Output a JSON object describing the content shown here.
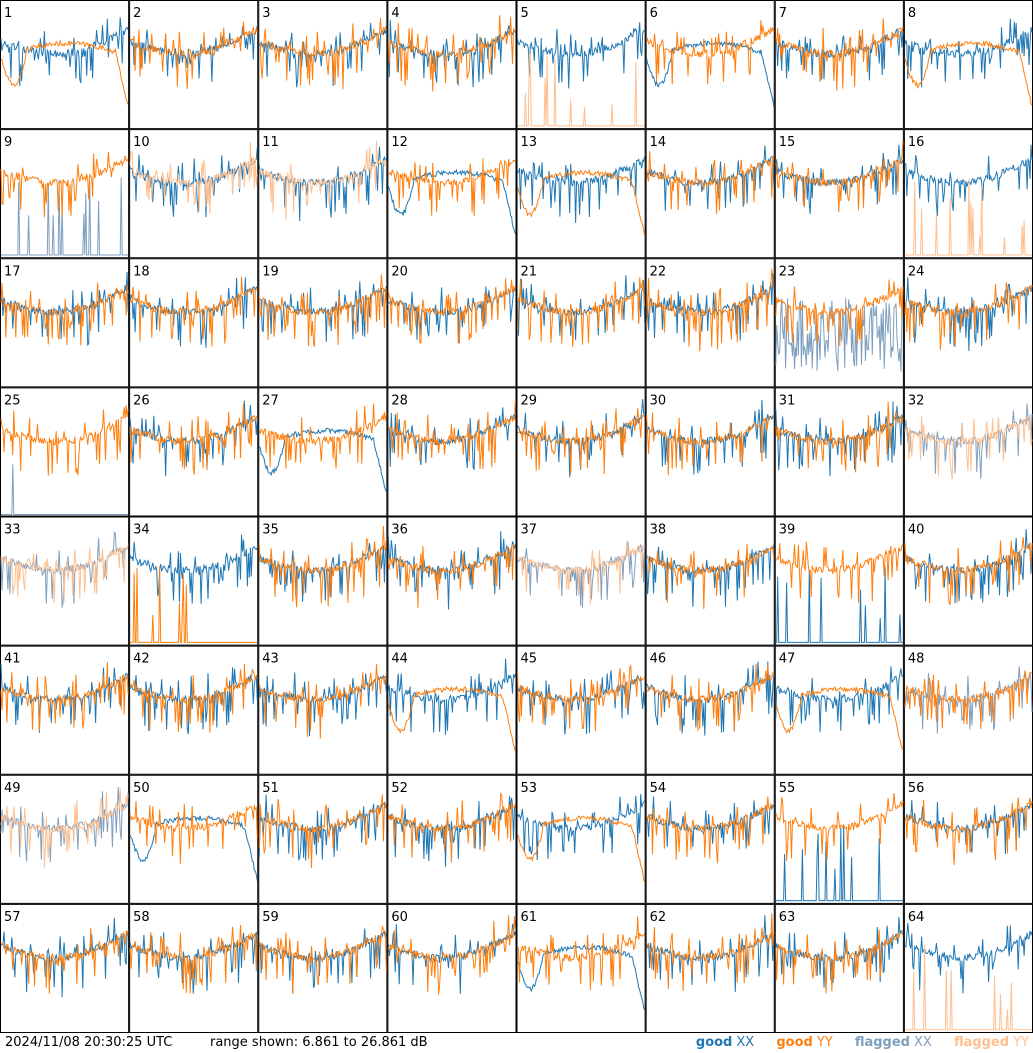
{
  "timestamp": "2024/11/08 20:30:25 UTC",
  "range_text": "range shown: 6.861 to 26.861 dB",
  "legend": {
    "good_xx": {
      "word": "good",
      "key": "XX",
      "color": "#1f77b4"
    },
    "good_yy": {
      "word": "good",
      "key": "YY",
      "color": "#ff7f0e"
    },
    "flagged_xx": {
      "word": "flagged",
      "key": "XX",
      "color": "#7f9fbf"
    },
    "flagged_yy": {
      "word": "flagged",
      "key": "YY",
      "color": "#ffbf8f"
    }
  },
  "chart_data": {
    "type": "line",
    "grid": {
      "rows": 8,
      "cols": 8
    },
    "ylim": [
      6.861,
      26.861
    ],
    "unit": "dB",
    "panels": [
      {
        "id": "1",
        "xx": "good",
        "yy": "good",
        "yy_shape": "smooth"
      },
      {
        "id": "2",
        "xx": "good",
        "yy": "good"
      },
      {
        "id": "3",
        "xx": "good",
        "yy": "good"
      },
      {
        "id": "4",
        "xx": "good",
        "yy": "good"
      },
      {
        "id": "5",
        "xx": "good",
        "yy": "flagged",
        "yy_shape": "spikes"
      },
      {
        "id": "6",
        "xx": "good",
        "yy": "good",
        "xx_shape": "smooth"
      },
      {
        "id": "7",
        "xx": "good",
        "yy": "good"
      },
      {
        "id": "8",
        "xx": "good",
        "yy": "good",
        "yy_shape": "smooth"
      },
      {
        "id": "9",
        "xx": "flagged",
        "yy": "good",
        "xx_shape": "spikes"
      },
      {
        "id": "10",
        "xx": "good",
        "yy": "flagged"
      },
      {
        "id": "11",
        "xx": "good",
        "yy": "flagged"
      },
      {
        "id": "12",
        "xx": "good",
        "yy": "good",
        "xx_shape": "smooth"
      },
      {
        "id": "13",
        "xx": "good",
        "yy": "good",
        "yy_shape": "smooth"
      },
      {
        "id": "14",
        "xx": "good",
        "yy": "good"
      },
      {
        "id": "15",
        "xx": "good",
        "yy": "good"
      },
      {
        "id": "16",
        "xx": "good",
        "yy": "flagged",
        "yy_shape": "spikes"
      },
      {
        "id": "17",
        "xx": "good",
        "yy": "good"
      },
      {
        "id": "18",
        "xx": "good",
        "yy": "good"
      },
      {
        "id": "19",
        "xx": "good",
        "yy": "good"
      },
      {
        "id": "20",
        "xx": "good",
        "yy": "good"
      },
      {
        "id": "21",
        "xx": "good",
        "yy": "good"
      },
      {
        "id": "22",
        "xx": "good",
        "yy": "good"
      },
      {
        "id": "23",
        "xx": "flagged",
        "yy": "good",
        "xx_shape": "noisy"
      },
      {
        "id": "24",
        "xx": "good",
        "yy": "good"
      },
      {
        "id": "25",
        "xx": "flagged",
        "yy": "good",
        "xx_shape": "spike"
      },
      {
        "id": "26",
        "xx": "good",
        "yy": "good"
      },
      {
        "id": "27",
        "xx": "good",
        "yy": "good",
        "xx_shape": "smooth"
      },
      {
        "id": "28",
        "xx": "good",
        "yy": "good"
      },
      {
        "id": "29",
        "xx": "good",
        "yy": "good"
      },
      {
        "id": "30",
        "xx": "good",
        "yy": "good"
      },
      {
        "id": "31",
        "xx": "good",
        "yy": "good"
      },
      {
        "id": "32",
        "xx": "flagged",
        "yy": "flagged"
      },
      {
        "id": "33",
        "xx": "flagged",
        "yy": "flagged"
      },
      {
        "id": "34",
        "xx": "good",
        "yy": "good",
        "yy_shape": "spikes"
      },
      {
        "id": "35",
        "xx": "good",
        "yy": "good"
      },
      {
        "id": "36",
        "xx": "good",
        "yy": "good"
      },
      {
        "id": "37",
        "xx": "flagged",
        "yy": "flagged"
      },
      {
        "id": "38",
        "xx": "good",
        "yy": "good"
      },
      {
        "id": "39",
        "xx": "good",
        "yy": "good",
        "xx_shape": "spikes"
      },
      {
        "id": "40",
        "xx": "good",
        "yy": "good"
      },
      {
        "id": "41",
        "xx": "good",
        "yy": "good"
      },
      {
        "id": "42",
        "xx": "good",
        "yy": "good"
      },
      {
        "id": "43",
        "xx": "good",
        "yy": "good"
      },
      {
        "id": "44",
        "xx": "good",
        "yy": "good",
        "yy_shape": "smooth"
      },
      {
        "id": "45",
        "xx": "good",
        "yy": "good"
      },
      {
        "id": "46",
        "xx": "good",
        "yy": "good"
      },
      {
        "id": "47",
        "xx": "good",
        "yy": "good",
        "yy_shape": "smooth"
      },
      {
        "id": "48",
        "xx": "flagged",
        "yy": "good"
      },
      {
        "id": "49",
        "xx": "flagged",
        "yy": "flagged"
      },
      {
        "id": "50",
        "xx": "good",
        "yy": "good",
        "xx_shape": "smooth"
      },
      {
        "id": "51",
        "xx": "good",
        "yy": "good"
      },
      {
        "id": "52",
        "xx": "good",
        "yy": "good"
      },
      {
        "id": "53",
        "xx": "good",
        "yy": "good",
        "yy_shape": "smooth"
      },
      {
        "id": "54",
        "xx": "good",
        "yy": "good"
      },
      {
        "id": "55",
        "xx": "good",
        "yy": "good",
        "xx_shape": "spikes"
      },
      {
        "id": "56",
        "xx": "good",
        "yy": "good"
      },
      {
        "id": "57",
        "xx": "good",
        "yy": "good"
      },
      {
        "id": "58",
        "xx": "good",
        "yy": "good"
      },
      {
        "id": "59",
        "xx": "good",
        "yy": "good"
      },
      {
        "id": "60",
        "xx": "good",
        "yy": "good"
      },
      {
        "id": "61",
        "xx": "good",
        "yy": "good",
        "xx_shape": "smooth"
      },
      {
        "id": "62",
        "xx": "good",
        "yy": "good"
      },
      {
        "id": "63",
        "xx": "good",
        "yy": "good"
      },
      {
        "id": "64",
        "xx": "good",
        "yy": "flagged",
        "yy_shape": "spikes"
      }
    ]
  }
}
